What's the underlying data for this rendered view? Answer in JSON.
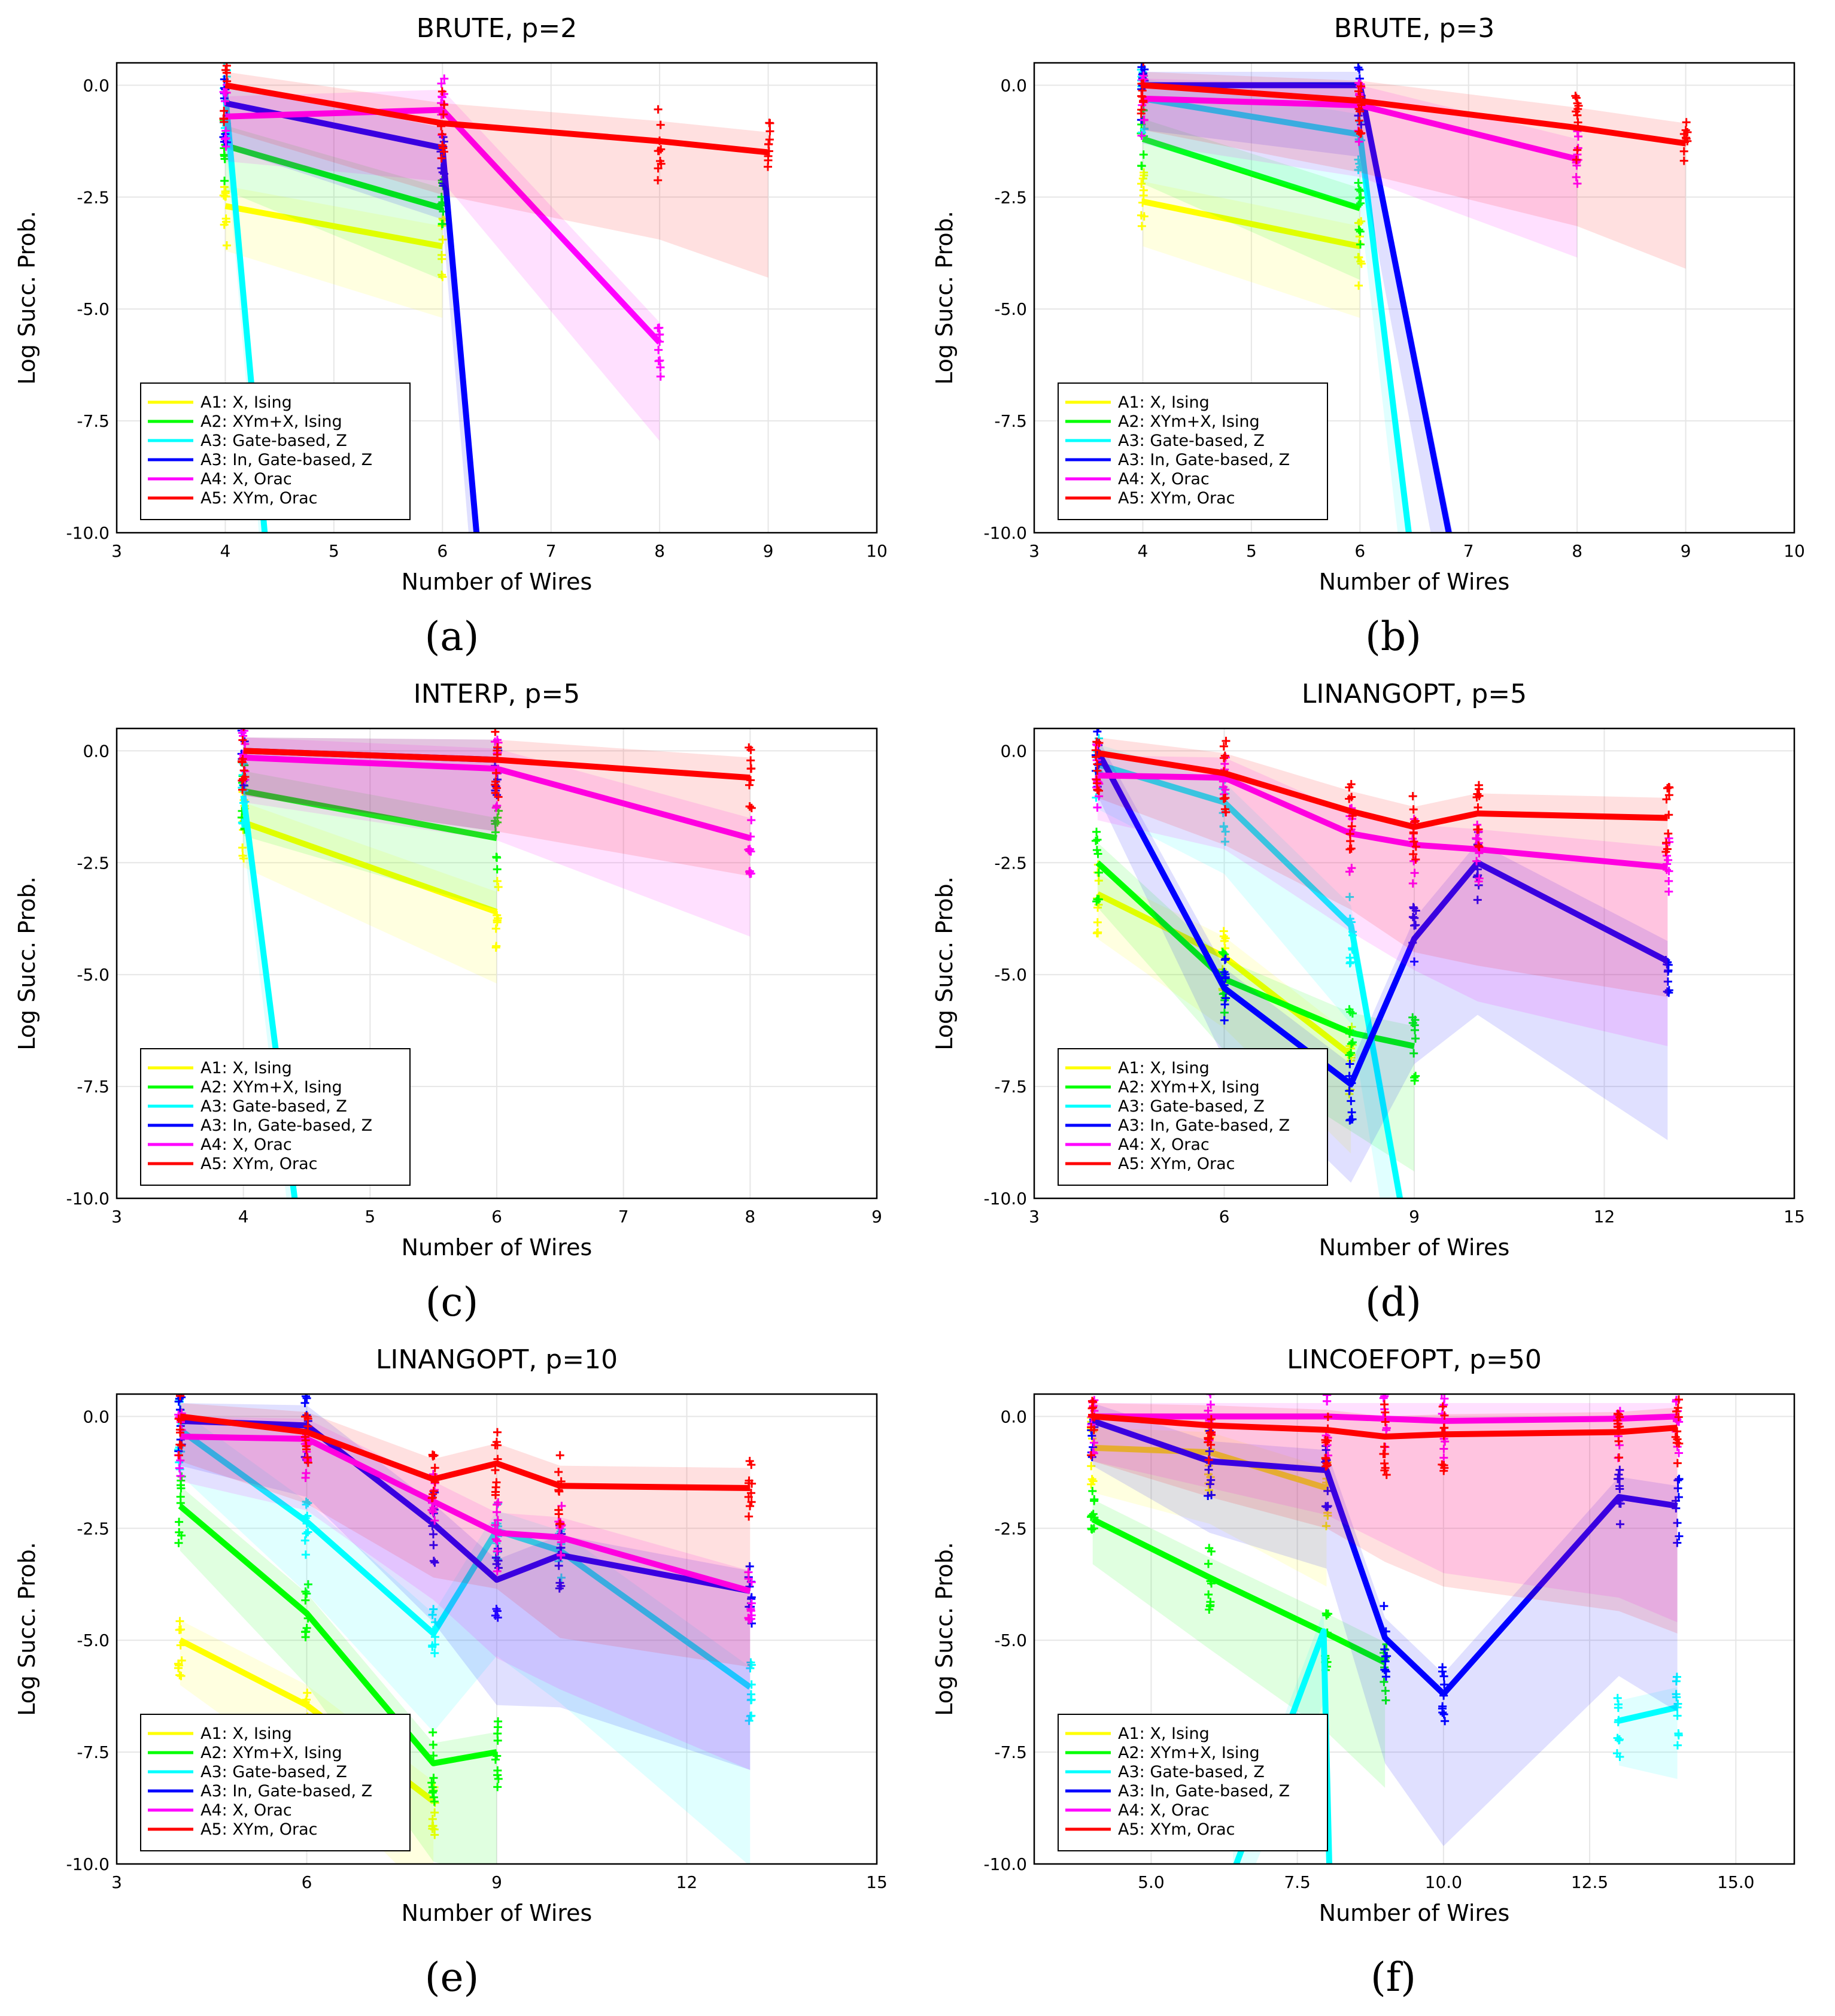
{
  "figure": {
    "ylabel": "Log Succ. Prob.",
    "xlabel": "Number of Wires",
    "legend": {
      "placement": "bottom-left",
      "entries": [
        "A1: X, Ising",
        "A2: XYm+X, Ising",
        "A3: Gate-based, Z",
        "A3: In, Gate-based, Z",
        "A4: X, Orac",
        "A5: XYm, Orac"
      ]
    },
    "colors": {
      "A1": "#ffff00",
      "A2": "#00ff00",
      "A3": "#00ffff",
      "A3In": "#0000ff",
      "A4": "#ff00ff",
      "A5": "#ff0000",
      "grid": "#e6e6e6",
      "axis": "#000000"
    },
    "captions": [
      "(a)",
      "(b)",
      "(c)",
      "(d)",
      "(e)",
      "(f)"
    ]
  },
  "chart_data": [
    {
      "type": "line",
      "title": "BRUTE, p=2",
      "xlabel": "Number of Wires",
      "ylabel": "Log Succ. Prob.",
      "xlim": [
        3,
        10
      ],
      "ylim": [
        -10,
        0.5
      ],
      "xticks": [
        "3",
        "4",
        "5",
        "6",
        "7",
        "8",
        "9",
        "10"
      ],
      "yticks": [
        "0.0",
        "-2.5",
        "-5.0",
        "-7.5",
        "-10.0"
      ],
      "series": [
        {
          "name": "A1: X, Ising",
          "x": [
            4,
            6
          ],
          "y": [
            -2.7,
            -3.6
          ]
        },
        {
          "name": "A2: XYm+X, Ising",
          "x": [
            4,
            6
          ],
          "y": [
            -1.35,
            -2.75
          ]
        },
        {
          "name": "A3: Gate-based, Z",
          "x": [
            4,
            4.4
          ],
          "y": [
            -0.2,
            -11
          ]
        },
        {
          "name": "A3: In, Gate-based, Z",
          "x": [
            4,
            6,
            6.35
          ],
          "y": [
            -0.4,
            -1.4,
            -11
          ]
        },
        {
          "name": "A4: X, Orac",
          "x": [
            4,
            6,
            8
          ],
          "y": [
            -0.7,
            -0.55,
            -5.75
          ]
        },
        {
          "name": "A5: XYm, Orac",
          "x": [
            4,
            6,
            8,
            9
          ],
          "y": [
            0.0,
            -0.85,
            -1.25,
            -1.5
          ]
        }
      ]
    },
    {
      "type": "line",
      "title": "BRUTE, p=3",
      "xlabel": "Number of Wires",
      "ylabel": "Log Succ. Prob.",
      "xlim": [
        3,
        10
      ],
      "ylim": [
        -10,
        0.5
      ],
      "xticks": [
        "3",
        "4",
        "5",
        "6",
        "7",
        "8",
        "9",
        "10"
      ],
      "yticks": [
        "0.0",
        "-2.5",
        "-5.0",
        "-7.5",
        "-10.0"
      ],
      "series": [
        {
          "name": "A1: X, Ising",
          "x": [
            4,
            6
          ],
          "y": [
            -2.6,
            -3.6
          ]
        },
        {
          "name": "A2: XYm+X, Ising",
          "x": [
            4,
            6
          ],
          "y": [
            -1.2,
            -2.75
          ]
        },
        {
          "name": "A3: Gate-based, Z",
          "x": [
            4,
            6,
            6.5
          ],
          "y": [
            -0.3,
            -1.1,
            -11
          ]
        },
        {
          "name": "A3: In, Gate-based, Z",
          "x": [
            4,
            6,
            6.9
          ],
          "y": [
            0.0,
            0.0,
            -11
          ]
        },
        {
          "name": "A4: X, Orac",
          "x": [
            4,
            6,
            8
          ],
          "y": [
            -0.3,
            -0.45,
            -1.65
          ]
        },
        {
          "name": "A5: XYm, Orac",
          "x": [
            4,
            6,
            8,
            9
          ],
          "y": [
            0.0,
            -0.35,
            -0.95,
            -1.3
          ]
        }
      ]
    },
    {
      "type": "line",
      "title": "INTERP, p=5",
      "xlabel": "Number of Wires",
      "ylabel": "Log Succ. Prob.",
      "xlim": [
        3,
        9
      ],
      "ylim": [
        -10,
        0.5
      ],
      "xticks": [
        "3",
        "4",
        "5",
        "6",
        "7",
        "8",
        "9"
      ],
      "yticks": [
        "0.0",
        "-2.5",
        "-5.0",
        "-7.5",
        "-10.0"
      ],
      "series": [
        {
          "name": "A1: X, Ising",
          "x": [
            4,
            6
          ],
          "y": [
            -1.6,
            -3.6
          ]
        },
        {
          "name": "A2: XYm+X, Ising",
          "x": [
            4,
            6
          ],
          "y": [
            -0.9,
            -1.95
          ]
        },
        {
          "name": "A3: Gate-based, Z",
          "x": [
            4,
            4.45
          ],
          "y": [
            -1.0,
            -11
          ]
        },
        {
          "name": "A3: In, Gate-based, Z",
          "x": [
            4,
            6
          ],
          "y": [
            0.0,
            -0.2
          ]
        },
        {
          "name": "A4: X, Orac",
          "x": [
            4,
            6,
            8
          ],
          "y": [
            -0.15,
            -0.4,
            -1.95
          ]
        },
        {
          "name": "A5: XYm, Orac",
          "x": [
            4,
            6,
            8
          ],
          "y": [
            0.0,
            -0.2,
            -0.6
          ]
        }
      ]
    },
    {
      "type": "line",
      "title": "LINANGOPT, p=5",
      "xlabel": "Number of Wires",
      "ylabel": "Log Succ. Prob.",
      "xlim": [
        3,
        15
      ],
      "ylim": [
        -10,
        0.5
      ],
      "xticks": [
        "3",
        "6",
        "9",
        "12",
        "15"
      ],
      "yticks": [
        "0.0",
        "-2.5",
        "-5.0",
        "-7.5",
        "-10.0"
      ],
      "series": [
        {
          "name": "A1: X, Ising",
          "x": [
            4,
            6,
            8
          ],
          "y": [
            -3.2,
            -4.6,
            -6.8
          ]
        },
        {
          "name": "A2: XYm+X, Ising",
          "x": [
            4,
            6,
            8,
            9
          ],
          "y": [
            -2.5,
            -5.1,
            -6.3,
            -6.6
          ]
        },
        {
          "name": "A3: Gate-based, Z",
          "x": [
            4,
            6,
            8,
            8.9
          ],
          "y": [
            -0.3,
            -1.15,
            -3.9,
            -11
          ]
        },
        {
          "name": "A3: In, Gate-based, Z",
          "x": [
            4,
            6,
            8,
            9,
            10,
            13
          ],
          "y": [
            0.0,
            -5.3,
            -7.45,
            -4.2,
            -2.5,
            -4.7
          ]
        },
        {
          "name": "A4: X, Orac",
          "x": [
            4,
            6,
            8,
            9,
            10,
            13
          ],
          "y": [
            -0.55,
            -0.6,
            -1.85,
            -2.1,
            -2.2,
            -2.6
          ]
        },
        {
          "name": "A5: XYm, Orac",
          "x": [
            4,
            6,
            8,
            9,
            10,
            13
          ],
          "y": [
            -0.05,
            -0.5,
            -1.35,
            -1.7,
            -1.4,
            -1.5
          ]
        }
      ]
    },
    {
      "type": "line",
      "title": "LINANGOPT, p=10",
      "xlabel": "Number of Wires",
      "ylabel": "Log Succ. Prob.",
      "xlim": [
        3,
        15
      ],
      "ylim": [
        -10,
        0.5
      ],
      "xticks": [
        "3",
        "6",
        "9",
        "12",
        "15"
      ],
      "yticks": [
        "0.0",
        "-2.5",
        "-5.0",
        "-7.5",
        "-10.0"
      ],
      "series": [
        {
          "name": "A1: X, Ising",
          "x": [
            4,
            6,
            8
          ],
          "y": [
            -5.0,
            -6.45,
            -8.6
          ]
        },
        {
          "name": "A2: XYm+X, Ising",
          "x": [
            4,
            6,
            8,
            9
          ],
          "y": [
            -2.0,
            -4.4,
            -7.75,
            -7.5
          ]
        },
        {
          "name": "A3: Gate-based, Z",
          "x": [
            4,
            6,
            8,
            9,
            10,
            13
          ],
          "y": [
            -0.3,
            -2.35,
            -4.85,
            -2.55,
            -3.0,
            -6.05
          ]
        },
        {
          "name": "A3: In, Gate-based, Z",
          "x": [
            4,
            6,
            8,
            9,
            10,
            13
          ],
          "y": [
            -0.1,
            -0.2,
            -2.4,
            -3.65,
            -3.1,
            -3.9
          ]
        },
        {
          "name": "A4: X, Orac",
          "x": [
            4,
            6,
            8,
            9,
            10,
            13
          ],
          "y": [
            -0.45,
            -0.5,
            -1.9,
            -2.6,
            -2.7,
            -3.9
          ]
        },
        {
          "name": "A5: XYm, Orac",
          "x": [
            4,
            6,
            8,
            9,
            10,
            13
          ],
          "y": [
            0.0,
            -0.35,
            -1.4,
            -1.05,
            -1.55,
            -1.6
          ]
        }
      ]
    },
    {
      "type": "line",
      "title": "LINCOEFOPT, p=50",
      "xlabel": "Number of Wires",
      "ylabel": "Log Succ. Prob.",
      "xlim": [
        3,
        16
      ],
      "ylim": [
        -10,
        0.5
      ],
      "xticks": [
        "5.0",
        "7.5",
        "10.0",
        "12.5",
        "15.0"
      ],
      "xtick_values": [
        5,
        7.5,
        10,
        12.5,
        15
      ],
      "yticks": [
        "0.0",
        "-2.5",
        "-5.0",
        "-7.5",
        "-10.0"
      ],
      "series": [
        {
          "name": "A1: X, Ising",
          "x": [
            4,
            6,
            8
          ],
          "y": [
            -0.7,
            -0.8,
            -1.6
          ]
        },
        {
          "name": "A2: XYm+X, Ising",
          "x": [
            4,
            6,
            8,
            9
          ],
          "y": [
            -2.3,
            -3.6,
            -4.85,
            -5.5
          ]
        },
        {
          "name": "A3: Gate-based, Z",
          "x": [
            6.4,
            7.95,
            8.05
          ],
          "y": [
            -10.2,
            -4.8,
            -10.2
          ]
        },
        {
          "name": "A3: Gate-based, Z (b)",
          "x": [
            13,
            14
          ],
          "y": [
            -6.8,
            -6.5
          ]
        },
        {
          "name": "A3: In, Gate-based, Z",
          "x": [
            4,
            6,
            8,
            9,
            10,
            13,
            14
          ],
          "y": [
            -0.1,
            -1.0,
            -1.2,
            -4.95,
            -6.2,
            -1.8,
            -2.0
          ]
        },
        {
          "name": "A4: X, Orac",
          "x": [
            4,
            6,
            8,
            9,
            10,
            13,
            14
          ],
          "y": [
            0.0,
            0.0,
            0.0,
            -0.05,
            -0.1,
            -0.05,
            0.0
          ]
        },
        {
          "name": "A5: XYm, Orac",
          "x": [
            4,
            6,
            8,
            9,
            10,
            13,
            14
          ],
          "y": [
            0.0,
            -0.2,
            -0.3,
            -0.45,
            -0.4,
            -0.35,
            -0.25
          ]
        }
      ]
    }
  ]
}
